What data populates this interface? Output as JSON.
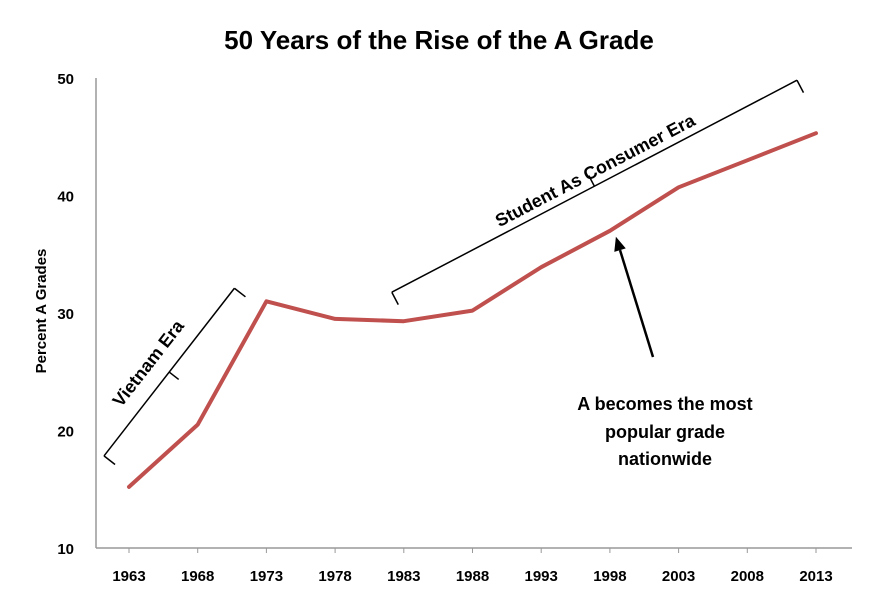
{
  "chart_data": {
    "type": "line",
    "title": "50 Years of the Rise of the A Grade",
    "xlabel": "",
    "ylabel": "Percent A Grades",
    "categories": [
      "1963",
      "1968",
      "1973",
      "1978",
      "1983",
      "1988",
      "1993",
      "1998",
      "2003",
      "2008",
      "2013"
    ],
    "series": [
      {
        "name": "Percent A Grades",
        "color": "#c0504d",
        "values": [
          15.2,
          20.5,
          31.0,
          29.5,
          29.3,
          30.2,
          33.9,
          37.0,
          40.7,
          43.0,
          45.3
        ]
      }
    ],
    "ylim": [
      10,
      50
    ],
    "yticks": [
      10,
      20,
      30,
      40,
      50
    ],
    "grid": false,
    "annotations": {
      "vietnam_era": {
        "label": "Vietnam Era",
        "start_year": 1963,
        "end_year": 1973
      },
      "consumer_era": {
        "label": "Student As Consumer Era",
        "start_year": 1983,
        "end_year": 2013
      },
      "callout": {
        "lines": [
          "A becomes the most",
          "popular grade",
          "nationwide"
        ],
        "points_to_year": 1998
      }
    }
  }
}
